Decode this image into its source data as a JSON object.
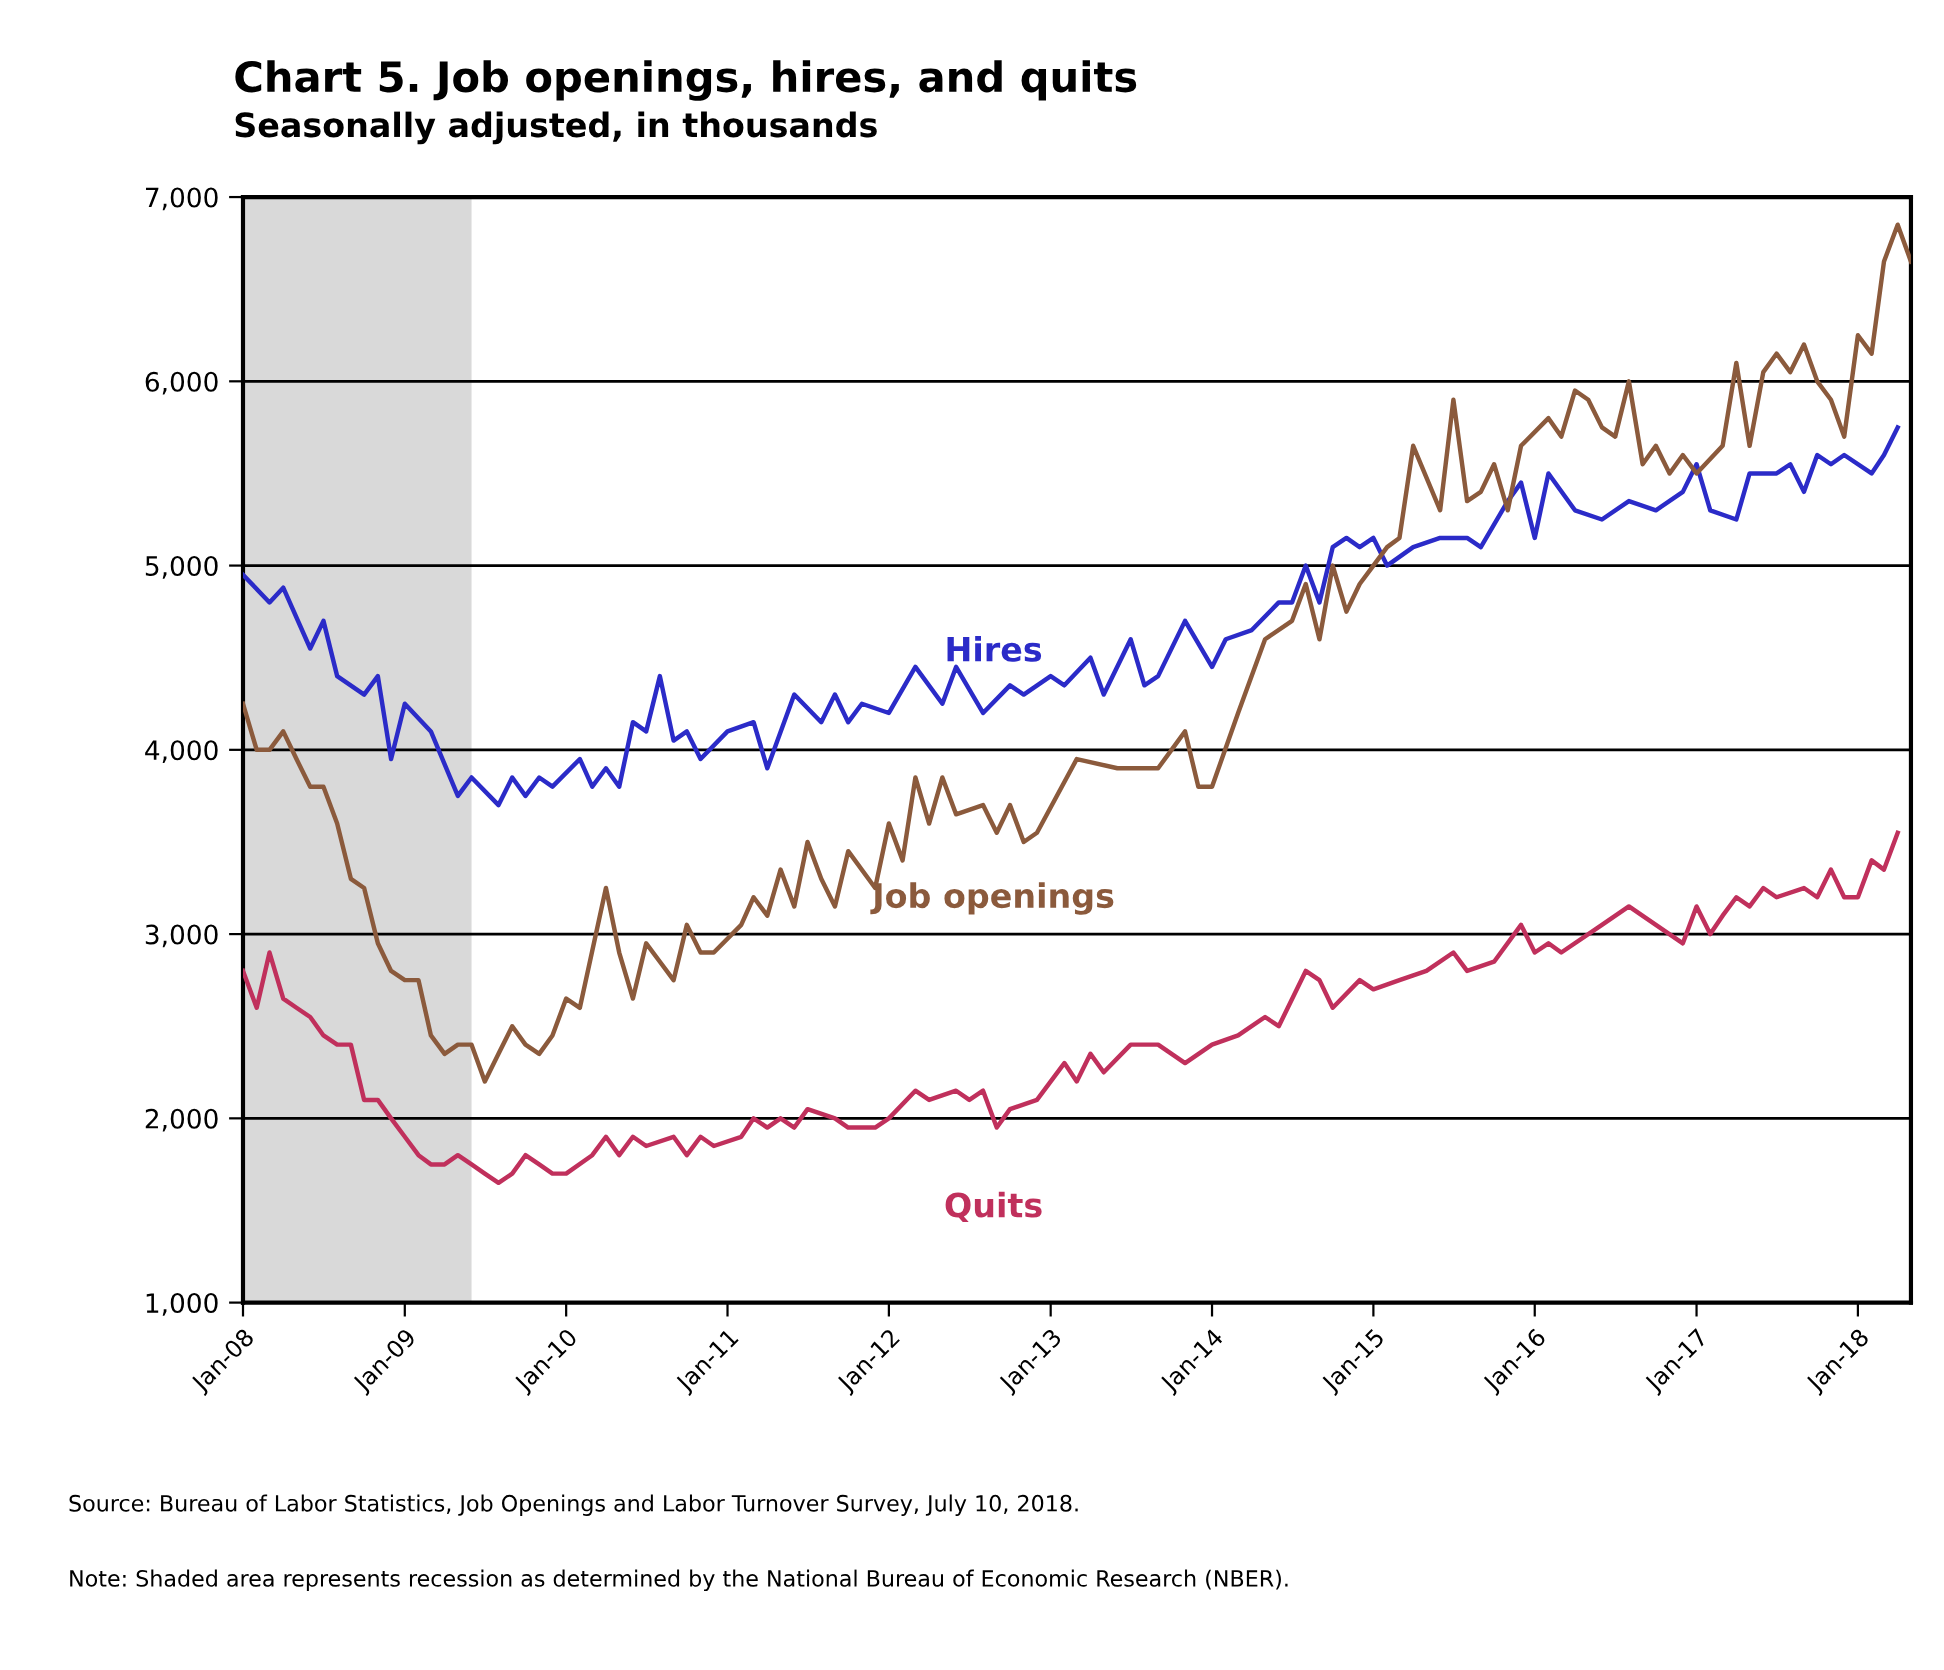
{
  "chart_data": {
    "type": "line",
    "title": "Chart 5. Job openings, hires, and quits",
    "subtitle": "Seasonally adjusted, in thousands",
    "series": [
      {
        "name": "Hires",
        "color": "#2b2bc8",
        "x": [
          "2008-01",
          "2008-03",
          "2008-04",
          "2008-06",
          "2008-07",
          "2008-08",
          "2008-10",
          "2008-11",
          "2008-12",
          "2009-01",
          "2009-03",
          "2009-05",
          "2009-06",
          "2009-08",
          "2009-09",
          "2009-10",
          "2009-11",
          "2009-12",
          "2010-02",
          "2010-03",
          "2010-04",
          "2010-05",
          "2010-06",
          "2010-07",
          "2010-08",
          "2010-09",
          "2010-10",
          "2010-11",
          "2011-01",
          "2011-03",
          "2011-04",
          "2011-06",
          "2011-08",
          "2011-09",
          "2011-10",
          "2011-11",
          "2012-01",
          "2012-03",
          "2012-05",
          "2012-06",
          "2012-08",
          "2012-10",
          "2012-11",
          "2013-01",
          "2013-02",
          "2013-04",
          "2013-05",
          "2013-07",
          "2013-08",
          "2013-09",
          "2013-11",
          "2014-01",
          "2014-02",
          "2014-04",
          "2014-06",
          "2014-07",
          "2014-08",
          "2014-09",
          "2014-10",
          "2014-11",
          "2014-12",
          "2015-01",
          "2015-02",
          "2015-04",
          "2015-06",
          "2015-08",
          "2015-09",
          "2015-11",
          "2015-12",
          "2016-01",
          "2016-02",
          "2016-04",
          "2016-06",
          "2016-08",
          "2016-10",
          "2016-12",
          "2017-01",
          "2017-02",
          "2017-04",
          "2017-05",
          "2017-07",
          "2017-08",
          "2017-09",
          "2017-10",
          "2017-11",
          "2017-12",
          "2018-02",
          "2018-03",
          "2018-04"
        ],
        "values": [
          4950,
          4800,
          4880,
          4550,
          4700,
          4400,
          4300,
          4400,
          3950,
          4250,
          4100,
          3750,
          3850,
          3700,
          3850,
          3750,
          3850,
          3800,
          3950,
          3800,
          3900,
          3800,
          4150,
          4100,
          4400,
          4050,
          4100,
          3950,
          4100,
          4150,
          3900,
          4300,
          4150,
          4300,
          4150,
          4250,
          4200,
          4450,
          4250,
          4450,
          4200,
          4350,
          4300,
          4400,
          4350,
          4500,
          4300,
          4600,
          4350,
          4400,
          4700,
          4450,
          4600,
          4650,
          4800,
          4800,
          5000,
          4800,
          5100,
          5150,
          5100,
          5150,
          5000,
          5100,
          5150,
          5150,
          5100,
          5350,
          5450,
          5150,
          5500,
          5300,
          5250,
          5350,
          5300,
          5400,
          5550,
          5300,
          5250,
          5500,
          5500,
          5550,
          5400,
          5600,
          5550,
          5600,
          5500,
          5600,
          5750
        ]
      },
      {
        "name": "Job openings",
        "color": "#8b5a3c",
        "x": [
          "2008-01",
          "2008-02",
          "2008-03",
          "2008-04",
          "2008-05",
          "2008-06",
          "2008-07",
          "2008-08",
          "2008-09",
          "2008-10",
          "2008-11",
          "2008-12",
          "2009-01",
          "2009-02",
          "2009-03",
          "2009-04",
          "2009-05",
          "2009-06",
          "2009-07",
          "2009-08",
          "2009-09",
          "2009-10",
          "2009-11",
          "2009-12",
          "2010-01",
          "2010-02",
          "2010-04",
          "2010-05",
          "2010-06",
          "2010-07",
          "2010-08",
          "2010-09",
          "2010-10",
          "2010-11",
          "2010-12",
          "2011-02",
          "2011-03",
          "2011-04",
          "2011-05",
          "2011-06",
          "2011-07",
          "2011-08",
          "2011-09",
          "2011-10",
          "2011-12",
          "2012-01",
          "2012-02",
          "2012-03",
          "2012-04",
          "2012-05",
          "2012-06",
          "2012-08",
          "2012-09",
          "2012-10",
          "2012-11",
          "2012-12",
          "2013-03",
          "2013-06",
          "2013-09",
          "2013-11",
          "2013-12",
          "2014-01",
          "2014-03",
          "2014-05",
          "2014-07",
          "2014-08",
          "2014-09",
          "2014-10",
          "2014-11",
          "2014-12",
          "2015-01",
          "2015-02",
          "2015-03",
          "2015-04",
          "2015-06",
          "2015-07",
          "2015-08",
          "2015-09",
          "2015-10",
          "2015-11",
          "2015-12",
          "2016-02",
          "2016-03",
          "2016-04",
          "2016-05",
          "2016-06",
          "2016-07",
          "2016-08",
          "2016-09",
          "2016-10",
          "2016-11",
          "2016-12",
          "2017-01",
          "2017-03",
          "2017-04",
          "2017-05",
          "2017-06",
          "2017-07",
          "2017-08",
          "2017-09",
          "2017-10",
          "2017-11",
          "2017-12",
          "2018-01",
          "2018-02",
          "2018-03",
          "2018-04",
          "2018-05"
        ],
        "values": [
          4250,
          4000,
          4000,
          4100,
          3950,
          3800,
          3800,
          3600,
          3300,
          3250,
          2950,
          2800,
          2750,
          2750,
          2450,
          2350,
          2400,
          2400,
          2200,
          2350,
          2500,
          2400,
          2350,
          2450,
          2650,
          2600,
          3250,
          2900,
          2650,
          2950,
          2850,
          2750,
          3050,
          2900,
          2900,
          3050,
          3200,
          3100,
          3350,
          3150,
          3500,
          3300,
          3150,
          3450,
          3250,
          3600,
          3400,
          3850,
          3600,
          3850,
          3650,
          3700,
          3550,
          3700,
          3500,
          3550,
          3950,
          3900,
          3900,
          4100,
          3800,
          3800,
          4200,
          4600,
          4700,
          4900,
          4600,
          5000,
          4750,
          4900,
          5000,
          5100,
          5150,
          5650,
          5300,
          5900,
          5350,
          5400,
          5550,
          5300,
          5650,
          5800,
          5700,
          5950,
          5900,
          5750,
          5700,
          6000,
          5550,
          5650,
          5500,
          5600,
          5500,
          5650,
          6100,
          5650,
          6050,
          6150,
          6050,
          6200,
          6000,
          5900,
          5700,
          6250,
          6150,
          6650,
          6850,
          6650
        ]
      },
      {
        "name": "Quits",
        "color": "#c0305c",
        "x": [
          "2008-01",
          "2008-02",
          "2008-03",
          "2008-04",
          "2008-05",
          "2008-06",
          "2008-07",
          "2008-08",
          "2008-09",
          "2008-10",
          "2008-11",
          "2008-12",
          "2009-01",
          "2009-02",
          "2009-03",
          "2009-04",
          "2009-05",
          "2009-06",
          "2009-07",
          "2009-08",
          "2009-09",
          "2009-10",
          "2009-11",
          "2009-12",
          "2010-01",
          "2010-03",
          "2010-04",
          "2010-05",
          "2010-06",
          "2010-07",
          "2010-09",
          "2010-10",
          "2010-11",
          "2010-12",
          "2011-02",
          "2011-03",
          "2011-04",
          "2011-05",
          "2011-06",
          "2011-07",
          "2011-09",
          "2011-10",
          "2011-12",
          "2012-01",
          "2012-03",
          "2012-04",
          "2012-06",
          "2012-07",
          "2012-08",
          "2012-09",
          "2012-10",
          "2012-12",
          "2013-02",
          "2013-03",
          "2013-04",
          "2013-05",
          "2013-07",
          "2013-09",
          "2013-11",
          "2014-01",
          "2014-03",
          "2014-05",
          "2014-06",
          "2014-08",
          "2014-09",
          "2014-10",
          "2014-12",
          "2015-01",
          "2015-03",
          "2015-05",
          "2015-07",
          "2015-08",
          "2015-10",
          "2015-12",
          "2016-01",
          "2016-02",
          "2016-03",
          "2016-06",
          "2016-08",
          "2016-10",
          "2016-12",
          "2017-01",
          "2017-02",
          "2017-03",
          "2017-04",
          "2017-05",
          "2017-06",
          "2017-07",
          "2017-09",
          "2017-10",
          "2017-11",
          "2017-12",
          "2018-01",
          "2018-02",
          "2018-03",
          "2018-04"
        ],
        "values": [
          2800,
          2600,
          2900,
          2650,
          2600,
          2550,
          2450,
          2400,
          2400,
          2100,
          2100,
          2000,
          1900,
          1800,
          1750,
          1750,
          1800,
          1750,
          1700,
          1650,
          1700,
          1800,
          1750,
          1700,
          1700,
          1800,
          1900,
          1800,
          1900,
          1850,
          1900,
          1800,
          1900,
          1850,
          1900,
          2000,
          1950,
          2000,
          1950,
          2050,
          2000,
          1950,
          1950,
          2000,
          2150,
          2100,
          2150,
          2100,
          2150,
          1950,
          2050,
          2100,
          2300,
          2200,
          2350,
          2250,
          2400,
          2400,
          2300,
          2400,
          2450,
          2550,
          2500,
          2800,
          2750,
          2600,
          2750,
          2700,
          2750,
          2800,
          2900,
          2800,
          2850,
          3050,
          2900,
          2950,
          2900,
          3050,
          3150,
          3050,
          2950,
          3150,
          3000,
          3100,
          3200,
          3150,
          3250,
          3200,
          3250,
          3200,
          3350,
          3200,
          3200,
          3400,
          3350,
          3550
        ]
      }
    ],
    "xlim": [
      "2008-01",
      "2018-05"
    ],
    "xticks": [
      {
        "value": "2008-01",
        "label": "Jan-08"
      },
      {
        "value": "2009-01",
        "label": "Jan-09"
      },
      {
        "value": "2010-01",
        "label": "Jan-10"
      },
      {
        "value": "2011-01",
        "label": "Jan-11"
      },
      {
        "value": "2012-01",
        "label": "Jan-12"
      },
      {
        "value": "2013-01",
        "label": "Jan-13"
      },
      {
        "value": "2014-01",
        "label": "Jan-14"
      },
      {
        "value": "2015-01",
        "label": "Jan-15"
      },
      {
        "value": "2016-01",
        "label": "Jan-16"
      },
      {
        "value": "2017-01",
        "label": "Jan-17"
      },
      {
        "value": "2018-01",
        "label": "Jan-18"
      }
    ],
    "ylim": [
      1000,
      7000
    ],
    "yticks": [
      {
        "value": 1000,
        "label": "1,000"
      },
      {
        "value": 2000,
        "label": "2,000"
      },
      {
        "value": 3000,
        "label": "3,000"
      },
      {
        "value": 4000,
        "label": "4,000"
      },
      {
        "value": 5000,
        "label": "5,000"
      },
      {
        "value": 6000,
        "label": "6,000"
      },
      {
        "value": 7000,
        "label": "7,000"
      }
    ],
    "bands": [
      {
        "axis": "x",
        "from": "2008-01",
        "to": "2009-06",
        "color": "#d9d9d9"
      }
    ],
    "grid": "y",
    "legend": false,
    "line_style": "solid",
    "annotations": [
      "Source: Bureau of Labor Statistics, Job Openings and Labor Turnover Survey, July 10, 2018.",
      "Note: Shaded area represents recession as determined by the National Bureau of Economic Research (NBER)."
    ]
  }
}
